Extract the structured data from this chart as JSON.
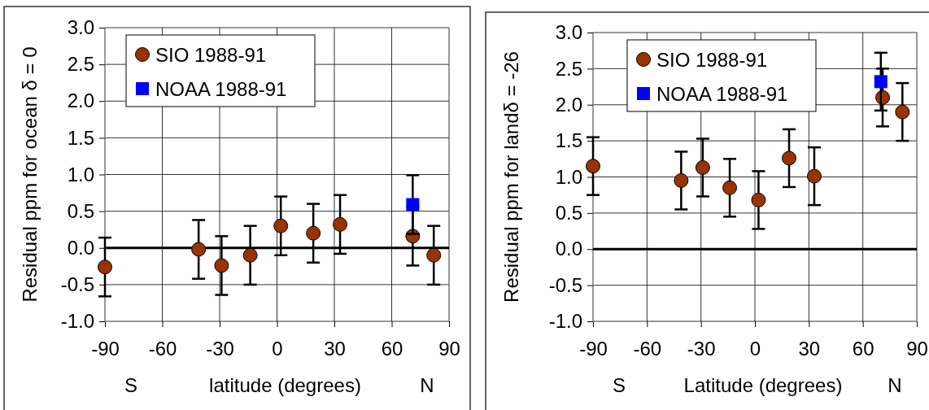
{
  "chart_data": [
    {
      "type": "scatter",
      "xlabel": "latitude (degrees)",
      "ylabel": "Residual ppm for ocean  δ = 0",
      "annotations": [
        "S",
        "N"
      ],
      "xlim": [
        -90,
        90
      ],
      "xticks": [
        -90,
        -60,
        -30,
        0,
        30,
        60,
        90
      ],
      "ylim": [
        -1,
        3
      ],
      "yticks": [
        {
          "value": -1,
          "label": "-1.0"
        },
        {
          "value": -0.5,
          "label": "-0.5"
        },
        {
          "value": 0,
          "label": "0.0"
        },
        {
          "value": 0.5,
          "label": "0.5"
        },
        {
          "value": 1,
          "label": "1.0"
        },
        {
          "value": 1.5,
          "label": "1.5"
        },
        {
          "value": 2,
          "label": "2.0"
        },
        {
          "value": 2.5,
          "label": "2.5"
        },
        {
          "value": 3,
          "label": "3.0"
        }
      ],
      "grid": true,
      "legend": "top left",
      "ref_lines": [
        {
          "axis": "y",
          "value": 0,
          "label": null,
          "color": "#000000"
        }
      ],
      "series": [
        {
          "name": "SIO 1988-91",
          "color": "#993300",
          "marker": "circle",
          "x": [
            -90,
            -41,
            -29,
            -14,
            2,
            19,
            33,
            71,
            82
          ],
          "values": [
            -0.26,
            -0.02,
            -0.24,
            -0.1,
            0.3,
            0.2,
            0.32,
            0.16,
            -0.1
          ],
          "errors": [
            0.4,
            0.4,
            0.4,
            0.4,
            0.4,
            0.4,
            0.4,
            0.4,
            0.4
          ]
        },
        {
          "name": "NOAA 1988-91",
          "color": "#0000ff",
          "marker": "square",
          "x": [
            71
          ],
          "values": [
            0.59
          ],
          "errors": [
            0.4
          ]
        }
      ]
    },
    {
      "type": "scatter",
      "xlabel": "Latitude (degrees)",
      "ylabel": "Residual ppm for landδ = -26",
      "annotations": [
        "S",
        "N"
      ],
      "xlim": [
        -90,
        90
      ],
      "xticks": [
        -90,
        -60,
        -30,
        0,
        30,
        60,
        90
      ],
      "ylim": [
        -1,
        3
      ],
      "yticks": [
        {
          "value": -1,
          "label": "-1.0"
        },
        {
          "value": -0.5,
          "label": "-0.5"
        },
        {
          "value": 0,
          "label": "0.0"
        },
        {
          "value": 0.5,
          "label": "0.5"
        },
        {
          "value": 1,
          "label": "1.0"
        },
        {
          "value": 1.5,
          "label": "1.5"
        },
        {
          "value": 2,
          "label": "2.0"
        },
        {
          "value": 2.5,
          "label": "2.5"
        },
        {
          "value": 3,
          "label": "3.0"
        }
      ],
      "grid": true,
      "legend": "top left",
      "ref_lines": [
        {
          "axis": "y",
          "value": 0,
          "label": null,
          "color": "#000000"
        }
      ],
      "series": [
        {
          "name": "SIO 1988-91",
          "color": "#993300",
          "marker": "circle",
          "x": [
            -90,
            -41,
            -29,
            -14,
            2,
            19,
            33,
            71,
            82
          ],
          "values": [
            1.15,
            0.95,
            1.13,
            0.85,
            0.68,
            1.26,
            1.01,
            2.1,
            1.9
          ],
          "errors": [
            0.4,
            0.4,
            0.4,
            0.4,
            0.4,
            0.4,
            0.4,
            0.4,
            0.4
          ]
        },
        {
          "name": "NOAA 1988-91",
          "color": "#0000ff",
          "marker": "square",
          "x": [
            70
          ],
          "values": [
            2.32
          ],
          "errors": [
            0.4
          ]
        }
      ]
    }
  ]
}
